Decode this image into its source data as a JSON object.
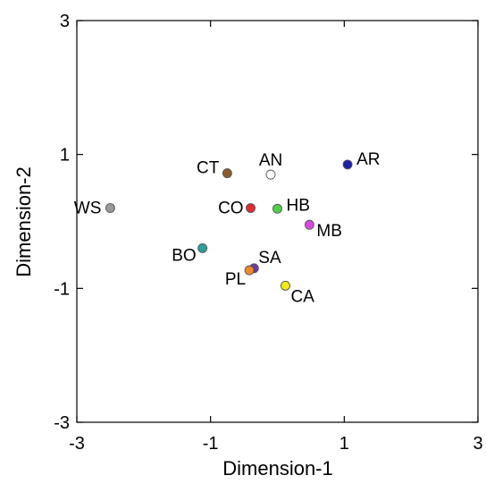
{
  "chart_data": {
    "type": "scatter",
    "title": "",
    "xlabel": "Dimension-1",
    "ylabel": "Dimension-2",
    "xlim": [
      -3,
      3
    ],
    "ylim": [
      -3,
      3
    ],
    "xticks": [
      "-3",
      "-1",
      "1",
      "3"
    ],
    "yticks": [
      "3",
      "1",
      "-1",
      "-3"
    ],
    "grid": false,
    "points": [
      {
        "label": "AN",
        "x": -0.1,
        "y": 0.7,
        "color": "#ffffff"
      },
      {
        "label": "AR",
        "x": 1.05,
        "y": 0.85,
        "color": "#1f1fa8"
      },
      {
        "label": "CT",
        "x": -0.75,
        "y": 0.72,
        "color": "#8b5a2b"
      },
      {
        "label": "WS",
        "x": -2.5,
        "y": 0.2,
        "color": "#999999"
      },
      {
        "label": "CO",
        "x": -0.4,
        "y": 0.2,
        "color": "#dd2b33"
      },
      {
        "label": "HB",
        "x": 0.0,
        "y": 0.19,
        "color": "#4ed146"
      },
      {
        "label": "MB",
        "x": 0.48,
        "y": -0.05,
        "color": "#d94be0"
      },
      {
        "label": "BO",
        "x": -1.12,
        "y": -0.4,
        "color": "#2aa199"
      },
      {
        "label": "SA",
        "x": -0.35,
        "y": -0.7,
        "color": "#6c3aa0"
      },
      {
        "label": "PL",
        "x": -0.42,
        "y": -0.73,
        "color": "#ef8a2a"
      },
      {
        "label": "CA",
        "x": 0.12,
        "y": -0.96,
        "color": "#f5ea14"
      }
    ]
  }
}
